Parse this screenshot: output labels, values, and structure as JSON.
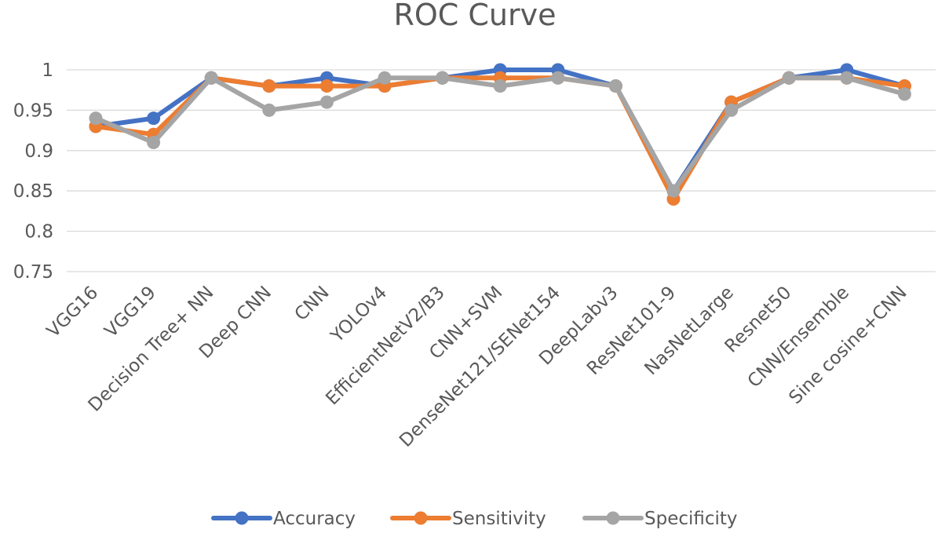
{
  "chart_data": {
    "type": "line",
    "title": "ROC Curve",
    "xlabel": "",
    "ylabel": "",
    "ylim": [
      0.75,
      1
    ],
    "yticks": [
      "0.75",
      "0.8",
      "0.85",
      "0.9",
      "0.95",
      "1"
    ],
    "grid": true,
    "legend_position": "bottom",
    "categories": [
      "VGG16",
      "VGG19",
      "Decision Tree+ NN",
      "Deep CNN",
      "CNN",
      "YOLOv4",
      "EfficientNetV2/B3",
      "CNN+SVM",
      "DenseNet121/SENet154",
      "DeepLabv3",
      "ResNet101-9",
      "NasNetLarge",
      "Resnet50",
      "CNN/Ensemble",
      "Sine cosine+CNN"
    ],
    "series": [
      {
        "name": "Accuracy",
        "color": "#4472C4",
        "values": [
          0.93,
          0.94,
          0.99,
          0.98,
          0.99,
          0.98,
          0.99,
          1.0,
          1.0,
          0.98,
          0.85,
          0.96,
          0.99,
          1.0,
          0.98
        ]
      },
      {
        "name": "Sensitivity",
        "color": "#ED7D31",
        "values": [
          0.93,
          0.92,
          0.99,
          0.98,
          0.98,
          0.98,
          0.99,
          0.99,
          0.99,
          0.98,
          0.84,
          0.96,
          0.99,
          0.99,
          0.98
        ]
      },
      {
        "name": "Specificity",
        "color": "#A5A5A5",
        "values": [
          0.94,
          0.91,
          0.99,
          0.95,
          0.96,
          0.99,
          0.99,
          0.98,
          0.99,
          0.98,
          0.85,
          0.95,
          0.99,
          0.99,
          0.97
        ]
      }
    ]
  }
}
